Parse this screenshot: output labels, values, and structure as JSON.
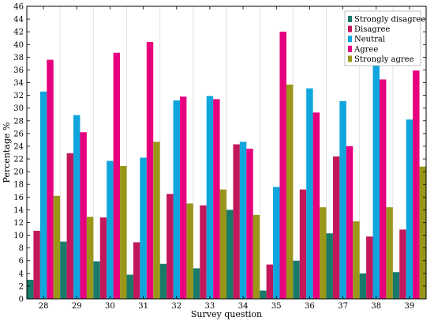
{
  "chart_data": {
    "type": "bar",
    "xlabel": "Survey question",
    "ylabel": "Percentage %",
    "ylim": [
      0,
      46
    ],
    "yticks": [
      0,
      2,
      4,
      6,
      8,
      10,
      12,
      14,
      16,
      18,
      20,
      22,
      24,
      26,
      28,
      30,
      32,
      34,
      36,
      38,
      40,
      42,
      44,
      46
    ],
    "categories": [
      "28",
      "29",
      "30",
      "31",
      "32",
      "33",
      "34",
      "35",
      "36",
      "37",
      "38",
      "39"
    ],
    "grid": "vertical",
    "legend_position": "top-right",
    "series": [
      {
        "name": "Strongly disagree",
        "color": "#1a7a6a",
        "values": [
          3.0,
          9.0,
          5.9,
          3.8,
          5.5,
          4.8,
          14.0,
          1.3,
          6.0,
          10.3,
          4.0,
          4.2
        ]
      },
      {
        "name": "Disagree",
        "color": "#c2185b",
        "values": [
          10.7,
          22.9,
          12.8,
          8.9,
          16.5,
          14.7,
          24.3,
          5.4,
          17.2,
          22.4,
          9.8,
          10.9
        ]
      },
      {
        "name": "Neutral",
        "color": "#10a5dc",
        "values": [
          32.6,
          28.9,
          21.7,
          22.2,
          31.2,
          31.9,
          24.7,
          17.6,
          33.1,
          31.1,
          37.3,
          28.2
        ]
      },
      {
        "name": "Agree",
        "color": "#e6007e",
        "values": [
          37.6,
          26.2,
          38.7,
          40.4,
          31.8,
          31.4,
          23.6,
          42.0,
          29.3,
          24.0,
          34.5,
          35.9
        ]
      },
      {
        "name": "Strongly agree",
        "color": "#9a961a",
        "values": [
          16.2,
          12.9,
          20.9,
          24.7,
          15.0,
          17.2,
          13.2,
          33.7,
          14.4,
          12.2,
          14.4,
          20.8
        ]
      }
    ]
  }
}
